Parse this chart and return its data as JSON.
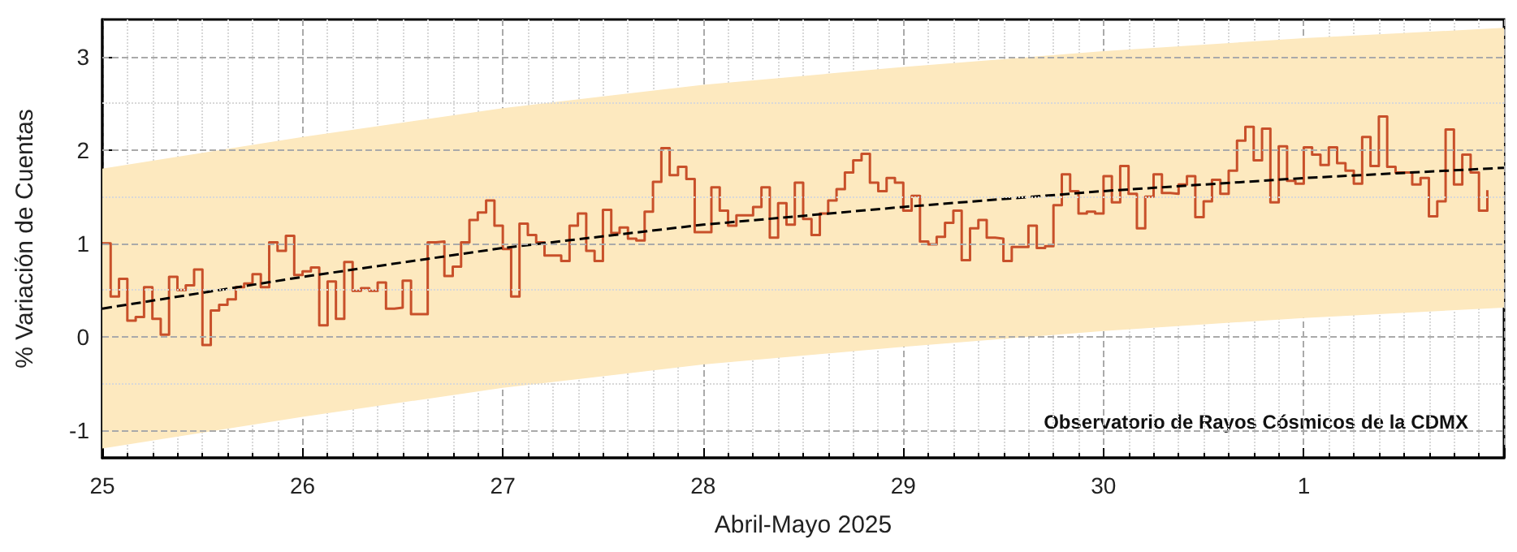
{
  "chart_data": {
    "type": "step",
    "xlabel": "Abril-Mayo 2025",
    "ylabel": "% Variación de Cuentas",
    "annotations": [
      "Observatorio de Rayos Cósmicos de la CDMX"
    ],
    "xlim": [
      "2025-04-25T00:00",
      "2025-05-02T00:00"
    ],
    "xticks": [
      {
        "value": "2025-04-25T00:00",
        "label": "25"
      },
      {
        "value": "2025-04-26T00:00",
        "label": "26"
      },
      {
        "value": "2025-04-27T00:00",
        "label": "27"
      },
      {
        "value": "2025-04-28T00:00",
        "label": "28"
      },
      {
        "value": "2025-04-29T00:00",
        "label": "29"
      },
      {
        "value": "2025-04-30T00:00",
        "label": "30"
      },
      {
        "value": "2025-05-01T00:00",
        "label": "1"
      }
    ],
    "ylim": [
      -1.3,
      3.4
    ],
    "yticks": [
      -1,
      0,
      1,
      2,
      3
    ],
    "grid": true,
    "series": [
      {
        "type": "line",
        "color": "#000000",
        "line_style": "dashed",
        "x": [
          "2025-04-25T00:00",
          "2025-04-25T12:00",
          "2025-04-26T00:00",
          "2025-04-27T00:00",
          "2025-04-28T00:00",
          "2025-04-29T00:00",
          "2025-04-30T00:00",
          "2025-05-01T00:00",
          "2025-05-02T00:00"
        ],
        "values": [
          0.3,
          0.47,
          0.64,
          0.95,
          1.2,
          1.39,
          1.56,
          1.7,
          1.81
        ],
        "lower": [
          -1.2,
          -1.03,
          -0.86,
          -0.55,
          -0.3,
          -0.11,
          0.06,
          0.2,
          0.31
        ],
        "upper": [
          1.8,
          1.97,
          2.14,
          2.45,
          2.7,
          2.89,
          3.06,
          3.2,
          3.31
        ]
      },
      {
        "color": "#c8502a",
        "x": [
          "2025-04-25T00:00",
          "2025-04-25T01:00",
          "2025-04-25T02:00",
          "2025-04-25T03:00",
          "2025-04-25T04:00",
          "2025-04-25T05:00",
          "2025-04-25T06:00",
          "2025-04-25T07:00",
          "2025-04-25T08:00",
          "2025-04-25T09:00",
          "2025-04-25T10:00",
          "2025-04-25T11:00",
          "2025-04-25T12:00",
          "2025-04-25T13:00",
          "2025-04-25T14:00",
          "2025-04-25T15:00",
          "2025-04-25T16:00",
          "2025-04-25T17:00",
          "2025-04-25T18:00",
          "2025-04-25T19:00",
          "2025-04-25T20:00",
          "2025-04-25T21:00",
          "2025-04-25T22:00",
          "2025-04-25T23:00",
          "2025-04-26T00:00",
          "2025-04-26T01:00",
          "2025-04-26T02:00",
          "2025-04-26T03:00",
          "2025-04-26T04:00",
          "2025-04-26T05:00",
          "2025-04-26T06:00",
          "2025-04-26T07:00",
          "2025-04-26T08:00",
          "2025-04-26T09:00",
          "2025-04-26T10:00",
          "2025-04-26T11:00",
          "2025-04-26T12:00",
          "2025-04-26T13:00",
          "2025-04-26T14:00",
          "2025-04-26T15:00",
          "2025-04-26T16:00",
          "2025-04-26T17:00",
          "2025-04-26T18:00",
          "2025-04-26T19:00",
          "2025-04-26T20:00",
          "2025-04-26T21:00",
          "2025-04-26T22:00",
          "2025-04-26T23:00",
          "2025-04-27T00:00",
          "2025-04-27T01:00",
          "2025-04-27T02:00",
          "2025-04-27T03:00",
          "2025-04-27T04:00",
          "2025-04-27T05:00",
          "2025-04-27T06:00",
          "2025-04-27T07:00",
          "2025-04-27T08:00",
          "2025-04-27T09:00",
          "2025-04-27T10:00",
          "2025-04-27T11:00",
          "2025-04-27T12:00",
          "2025-04-27T13:00",
          "2025-04-27T14:00",
          "2025-04-27T15:00",
          "2025-04-27T16:00",
          "2025-04-27T17:00",
          "2025-04-27T18:00",
          "2025-04-27T19:00",
          "2025-04-27T20:00",
          "2025-04-27T21:00",
          "2025-04-27T22:00",
          "2025-04-27T23:00",
          "2025-04-28T00:00",
          "2025-04-28T01:00",
          "2025-04-28T02:00",
          "2025-04-28T03:00",
          "2025-04-28T04:00",
          "2025-04-28T05:00",
          "2025-04-28T06:00",
          "2025-04-28T07:00",
          "2025-04-28T08:00",
          "2025-04-28T09:00",
          "2025-04-28T10:00",
          "2025-04-28T11:00",
          "2025-04-28T12:00",
          "2025-04-28T13:00",
          "2025-04-28T14:00",
          "2025-04-28T15:00",
          "2025-04-28T16:00",
          "2025-04-28T17:00",
          "2025-04-28T18:00",
          "2025-04-28T19:00",
          "2025-04-28T20:00",
          "2025-04-28T21:00",
          "2025-04-28T22:00",
          "2025-04-28T23:00",
          "2025-04-29T00:00",
          "2025-04-29T01:00",
          "2025-04-29T02:00",
          "2025-04-29T03:00",
          "2025-04-29T04:00",
          "2025-04-29T05:00",
          "2025-04-29T06:00",
          "2025-04-29T07:00",
          "2025-04-29T08:00",
          "2025-04-29T09:00",
          "2025-04-29T10:00",
          "2025-04-29T11:00",
          "2025-04-29T12:00",
          "2025-04-29T13:00",
          "2025-04-29T14:00",
          "2025-04-29T15:00",
          "2025-04-29T16:00",
          "2025-04-29T17:00",
          "2025-04-29T18:00",
          "2025-04-29T19:00",
          "2025-04-29T20:00",
          "2025-04-29T21:00",
          "2025-04-29T22:00",
          "2025-04-29T23:00",
          "2025-04-30T00:00",
          "2025-04-30T01:00",
          "2025-04-30T02:00",
          "2025-04-30T03:00",
          "2025-04-30T04:00",
          "2025-04-30T05:00",
          "2025-04-30T06:00",
          "2025-04-30T07:00",
          "2025-04-30T08:00",
          "2025-04-30T09:00",
          "2025-04-30T10:00",
          "2025-04-30T11:00",
          "2025-04-30T12:00",
          "2025-04-30T13:00",
          "2025-04-30T14:00",
          "2025-04-30T15:00",
          "2025-04-30T16:00",
          "2025-04-30T17:00",
          "2025-04-30T18:00",
          "2025-04-30T19:00",
          "2025-04-30T20:00",
          "2025-04-30T21:00",
          "2025-04-30T22:00",
          "2025-04-30T23:00",
          "2025-05-01T00:00",
          "2025-05-01T01:00",
          "2025-05-01T02:00",
          "2025-05-01T03:00",
          "2025-05-01T04:00",
          "2025-05-01T05:00",
          "2025-05-01T06:00",
          "2025-05-01T07:00",
          "2025-05-01T08:00",
          "2025-05-01T09:00",
          "2025-05-01T10:00",
          "2025-05-01T11:00",
          "2025-05-01T12:00",
          "2025-05-01T13:00",
          "2025-05-01T14:00",
          "2025-05-01T15:00",
          "2025-05-01T16:00",
          "2025-05-01T17:00",
          "2025-05-01T18:00",
          "2025-05-01T19:00",
          "2025-05-01T20:00",
          "2025-05-01T21:00",
          "2025-05-01T22:00"
        ],
        "values": [
          1.0,
          0.43,
          0.62,
          0.17,
          0.21,
          0.53,
          0.19,
          0.02,
          0.64,
          0.5,
          0.55,
          0.72,
          -0.09,
          0.28,
          0.34,
          0.4,
          0.53,
          0.57,
          0.67,
          0.53,
          1.01,
          0.92,
          1.08,
          0.66,
          0.7,
          0.74,
          0.12,
          0.59,
          0.19,
          0.8,
          0.49,
          0.52,
          0.49,
          0.58,
          0.3,
          0.31,
          0.6,
          0.24,
          0.24,
          1.01,
          1.02,
          0.65,
          0.75,
          1.01,
          1.25,
          1.33,
          1.46,
          1.19,
          0.94,
          0.43,
          1.21,
          1.09,
          1.01,
          0.87,
          0.87,
          0.81,
          1.19,
          1.32,
          0.92,
          0.81,
          1.36,
          1.11,
          1.17,
          1.05,
          1.03,
          1.34,
          1.66,
          2.02,
          1.73,
          1.82,
          1.69,
          1.12,
          1.12,
          1.6,
          1.35,
          1.19,
          1.3,
          1.3,
          1.39,
          1.6,
          1.06,
          1.43,
          1.2,
          1.65,
          1.26,
          1.09,
          1.32,
          1.46,
          1.58,
          1.76,
          1.89,
          1.96,
          1.65,
          1.56,
          1.7,
          1.65,
          1.35,
          1.51,
          1.02,
          0.99,
          1.07,
          1.22,
          1.35,
          0.82,
          1.16,
          1.25,
          1.06,
          1.05,
          0.81,
          0.96,
          0.96,
          1.19,
          0.95,
          0.97,
          1.41,
          1.74,
          1.56,
          1.32,
          1.34,
          1.32,
          1.72,
          1.44,
          1.83,
          1.53,
          1.16,
          1.5,
          1.74,
          1.54,
          1.53,
          1.63,
          1.72,
          1.28,
          1.45,
          1.68,
          1.53,
          1.78,
          2.1,
          2.25,
          1.89,
          2.23,
          1.44,
          2.04,
          1.67,
          1.64,
          2.03,
          1.95,
          1.84,
          2.03,
          1.86,
          1.78,
          1.64,
          2.14,
          1.83,
          2.36,
          1.82,
          1.76,
          1.76,
          1.63,
          1.7,
          1.29,
          1.45,
          2.22,
          1.63,
          1.95,
          1.76,
          1.35,
          1.57
        ]
      }
    ]
  }
}
